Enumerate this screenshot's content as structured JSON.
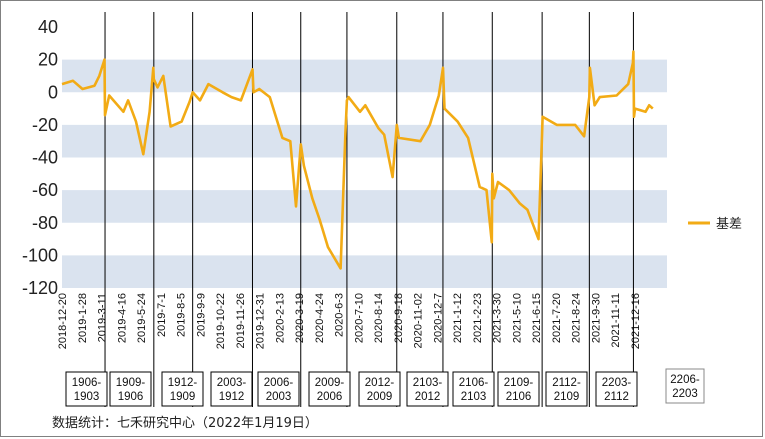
{
  "chart_data": {
    "type": "line",
    "title": "",
    "xlabel": "",
    "ylabel": "",
    "ylim": [
      -120,
      40
    ],
    "yticks": [
      -120,
      -100,
      -80,
      -60,
      -40,
      -20,
      0,
      20,
      40
    ],
    "ytick_labels": [
      "-120",
      "-100",
      "-80",
      "-60",
      "-40",
      "-20",
      "0",
      "20",
      "40"
    ],
    "band_color": "#dae3ef",
    "line_color": "#f2ab15",
    "legend_position": "right",
    "x_tick_labels": [
      "2018-12-20",
      "2019-1-28",
      "2019-3-11",
      "2019-4-16",
      "2019-5-24",
      "2019-7-1",
      "2019-8-5",
      "2019-9-9",
      "2019-10-22",
      "2019-11-26",
      "2019-12-31",
      "2020-2-13",
      "2020-3-19",
      "2020-4-24",
      "2020-6-3",
      "2020-7-10",
      "2020-8-14",
      "2020-9-18",
      "2020-11-02",
      "2020-12-7",
      "2021-1-12",
      "2021-2-23",
      "2021-3-30",
      "2021-5-10",
      "2021-6-15",
      "2021-7-20",
      "2021-8-24",
      "2021-9-30",
      "2021-11-11",
      "2021-12-16"
    ],
    "series": [
      {
        "name": "基差",
        "x": [
          "2018-12-20",
          "2019-1-10",
          "2019-1-28",
          "2019-2-20",
          "2019-3-01",
          "2019-3-11",
          "2019-3-12",
          "2019-3-20",
          "2019-4-16",
          "2019-4-25",
          "2019-5-10",
          "2019-5-24",
          "2019-6-05",
          "2019-6-12",
          "2019-6-13",
          "2019-6-20",
          "2019-7-1",
          "2019-7-15",
          "2019-8-5",
          "2019-8-20",
          "2019-8-26",
          "2019-9-9",
          "2019-9-25",
          "2019-10-22",
          "2019-11-08",
          "2019-11-26",
          "2019-12-18",
          "2019-12-20",
          "2019-12-31",
          "2020-1-20",
          "2020-2-13",
          "2020-2-28",
          "2020-3-10",
          "2020-3-19",
          "2020-3-25",
          "2020-4-10",
          "2020-4-24",
          "2020-5-10",
          "2020-6-3",
          "2020-6-12",
          "2020-6-15",
          "2020-6-18",
          "2020-7-10",
          "2020-7-20",
          "2020-8-14",
          "2020-8-25",
          "2020-9-10",
          "2020-9-18",
          "2020-9-22",
          "2020-11-02",
          "2020-11-20",
          "2020-12-7",
          "2020-12-15",
          "2020-12-18",
          "2021-1-12",
          "2021-2-01",
          "2021-2-23",
          "2021-3-08",
          "2021-3-18",
          "2021-3-19",
          "2021-3-22",
          "2021-3-30",
          "2021-4-20",
          "2021-5-10",
          "2021-5-25",
          "2021-6-15",
          "2021-6-22",
          "2021-6-23",
          "2021-7-20",
          "2021-8-24",
          "2021-9-10",
          "2021-9-20",
          "2021-9-21",
          "2021-9-30",
          "2021-10-10",
          "2021-11-11",
          "2021-12-03",
          "2021-12-12",
          "2021-12-13",
          "2021-12-14",
          "2021-12-16",
          "2022-1-05",
          "2022-1-12",
          "2022-1-19"
        ],
        "values": [
          5,
          7,
          2,
          4,
          10,
          20,
          -14,
          -2,
          -12,
          -5,
          -18,
          -38,
          -12,
          15,
          8,
          3,
          10,
          -21,
          -18,
          -6,
          0,
          -5,
          5,
          0,
          -3,
          -5,
          14,
          0,
          2,
          -3,
          -28,
          -30,
          -70,
          -32,
          -45,
          -65,
          -78,
          -95,
          -108,
          -25,
          -5,
          -3,
          -12,
          -8,
          -22,
          -26,
          -52,
          -20,
          -28,
          -30,
          -20,
          -2,
          15,
          -10,
          -18,
          -28,
          -58,
          -60,
          -92,
          -50,
          -65,
          -55,
          -60,
          -68,
          -72,
          -90,
          -25,
          -15,
          -20,
          -20,
          -27,
          -3,
          15,
          -8,
          -3,
          -2,
          5,
          18,
          25,
          -15,
          -10,
          -12,
          -8,
          -10
        ]
      }
    ],
    "contract_boxes": [
      {
        "line1": "1906-",
        "line2": "1903"
      },
      {
        "line1": "1909-",
        "line2": "1906"
      },
      {
        "line1": "1912-",
        "line2": "1909"
      },
      {
        "line1": "2003-",
        "line2": "1912"
      },
      {
        "line1": "2006-",
        "line2": "2003"
      },
      {
        "line1": "2009-",
        "line2": "2006"
      },
      {
        "line1": "2012-",
        "line2": "2009"
      },
      {
        "line1": "2103-",
        "line2": "2012"
      },
      {
        "line1": "2106-",
        "line2": "2103"
      },
      {
        "line1": "2109-",
        "line2": "2106"
      },
      {
        "line1": "2112-",
        "line2": "2109"
      },
      {
        "line1": "2203-",
        "line2": "2112"
      },
      {
        "line1": "2206-",
        "line2": "2203"
      }
    ],
    "contract_switch_dates": [
      "2019-3-12",
      "2019-6-13",
      "2019-8-26",
      "2019-12-18",
      "2020-3-19",
      "2020-6-15",
      "2020-9-18",
      "2020-12-15",
      "2021-3-19",
      "2021-6-22",
      "2021-9-20",
      "2021-12-13"
    ]
  },
  "source_text": "数据统计：七禾研究中心（2022年1月19日）"
}
